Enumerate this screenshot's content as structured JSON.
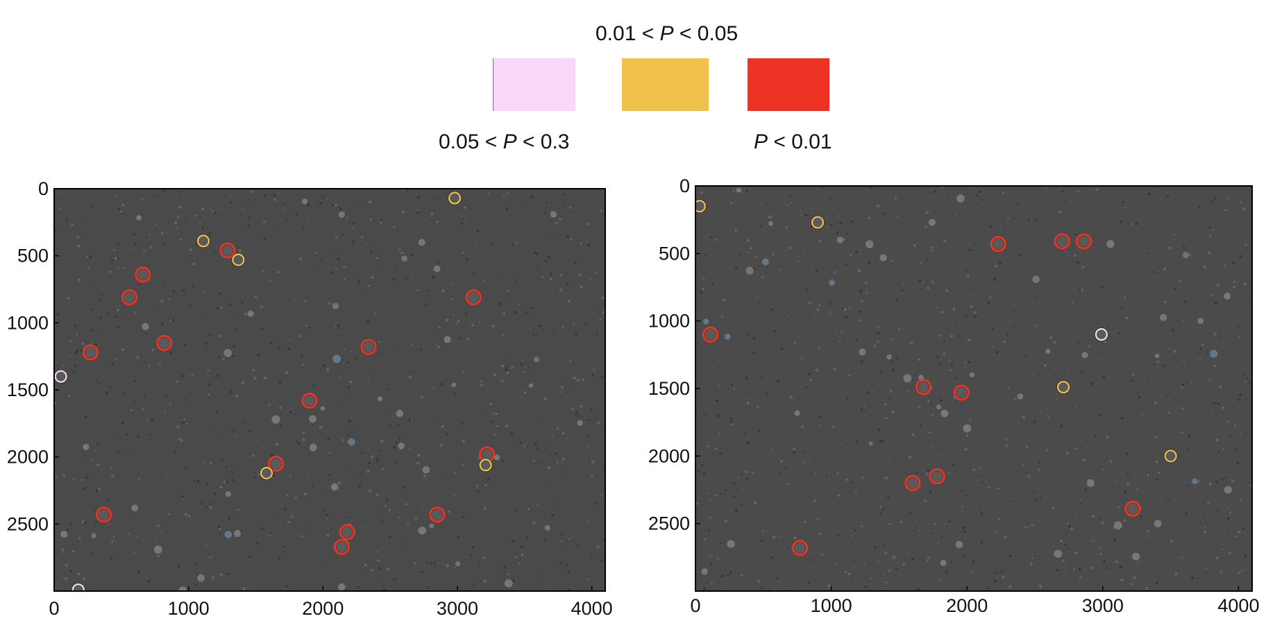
{
  "legend": {
    "items": [
      {
        "id": "mid",
        "label_prefix": "0.01 < ",
        "label_var": "P",
        "label_suffix": " < 0.05",
        "color": "#f0c24b"
      },
      {
        "id": "low",
        "label_prefix": "0.05 < ",
        "label_var": "P",
        "label_suffix": " < 0.3",
        "color": "#f7d8fa"
      },
      {
        "id": "high",
        "label_prefix": "",
        "label_var": "P",
        "label_suffix": " < 0.01",
        "color": "#ee3224"
      }
    ]
  },
  "panels": [
    {
      "id": "left",
      "x_ticks": [
        "0",
        "1000",
        "2000",
        "3000",
        "4000"
      ],
      "y_ticks": [
        "0",
        "500",
        "1000",
        "1500",
        "2000",
        "2500"
      ],
      "xlim": [
        0,
        4100
      ],
      "ylim": [
        3000,
        0
      ],
      "background": "#4a4a4a",
      "cells": [
        {
          "x": 2980,
          "y": 70,
          "class": "mid"
        },
        {
          "x": 1110,
          "y": 390,
          "class": "mid"
        },
        {
          "x": 1290,
          "y": 460,
          "class": "high"
        },
        {
          "x": 1370,
          "y": 530,
          "class": "mid"
        },
        {
          "x": 660,
          "y": 640,
          "class": "high"
        },
        {
          "x": 560,
          "y": 810,
          "class": "high"
        },
        {
          "x": 3120,
          "y": 810,
          "class": "high"
        },
        {
          "x": 820,
          "y": 1150,
          "class": "high"
        },
        {
          "x": 270,
          "y": 1220,
          "class": "high"
        },
        {
          "x": 2340,
          "y": 1180,
          "class": "high"
        },
        {
          "x": 50,
          "y": 1400,
          "class": "low"
        },
        {
          "x": 1900,
          "y": 1580,
          "class": "high"
        },
        {
          "x": 3220,
          "y": 1980,
          "class": "high"
        },
        {
          "x": 3210,
          "y": 2060,
          "class": "mid"
        },
        {
          "x": 1650,
          "y": 2050,
          "class": "high"
        },
        {
          "x": 1580,
          "y": 2120,
          "class": "mid"
        },
        {
          "x": 370,
          "y": 2430,
          "class": "high"
        },
        {
          "x": 2850,
          "y": 2430,
          "class": "high"
        },
        {
          "x": 2180,
          "y": 2560,
          "class": "high"
        },
        {
          "x": 2140,
          "y": 2670,
          "class": "high"
        },
        {
          "x": 180,
          "y": 2990,
          "class": "low"
        }
      ]
    },
    {
      "id": "right",
      "x_ticks": [
        "0",
        "1000",
        "2000",
        "3000",
        "4000"
      ],
      "y_ticks": [
        "0",
        "500",
        "1000",
        "1500",
        "2000",
        "2500"
      ],
      "xlim": [
        0,
        4100
      ],
      "ylim": [
        3000,
        0
      ],
      "background": "#4b4b4b",
      "cells": [
        {
          "x": 30,
          "y": 150,
          "class": "mid"
        },
        {
          "x": 900,
          "y": 270,
          "class": "mid"
        },
        {
          "x": 2230,
          "y": 430,
          "class": "high"
        },
        {
          "x": 2700,
          "y": 410,
          "class": "high"
        },
        {
          "x": 2860,
          "y": 410,
          "class": "high"
        },
        {
          "x": 110,
          "y": 1100,
          "class": "high"
        },
        {
          "x": 2990,
          "y": 1100,
          "class": "low"
        },
        {
          "x": 1680,
          "y": 1490,
          "class": "high"
        },
        {
          "x": 1960,
          "y": 1530,
          "class": "high"
        },
        {
          "x": 2710,
          "y": 1490,
          "class": "mid"
        },
        {
          "x": 3500,
          "y": 2000,
          "class": "mid"
        },
        {
          "x": 1600,
          "y": 2200,
          "class": "high"
        },
        {
          "x": 1780,
          "y": 2150,
          "class": "high"
        },
        {
          "x": 3220,
          "y": 2390,
          "class": "high"
        },
        {
          "x": 770,
          "y": 2680,
          "class": "high"
        }
      ]
    }
  ]
}
